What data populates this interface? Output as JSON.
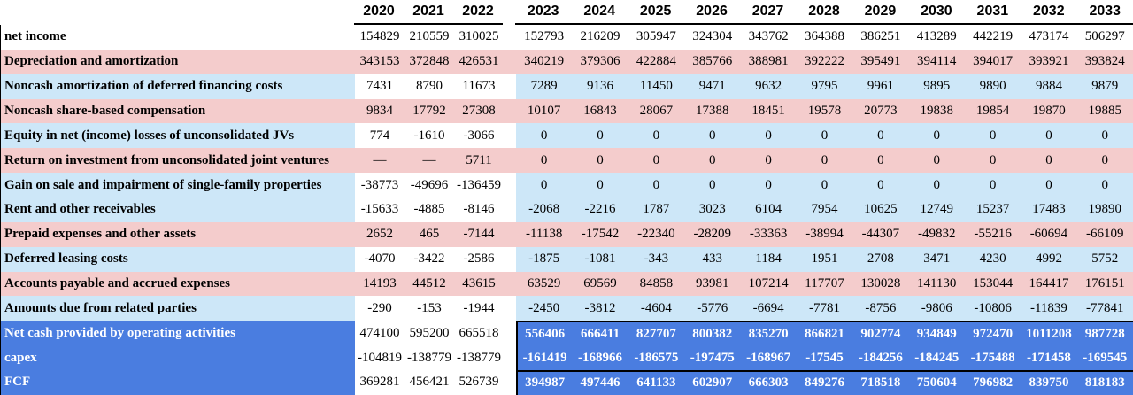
{
  "colors": {
    "row_pink": "#f4cccc",
    "row_light_blue": "#cde7f8",
    "total_blue": "#4a7de0",
    "rule_black": "#000000"
  },
  "table": {
    "years_historical": [
      "2020",
      "2021",
      "2022"
    ],
    "years_forecast": [
      "2023",
      "2024",
      "2025",
      "2026",
      "2027",
      "2028",
      "2029",
      "2030",
      "2031",
      "2032",
      "2033"
    ],
    "rows": [
      {
        "label": "net income",
        "type": "plain",
        "rule": false,
        "hist": [
          "154829",
          "210559",
          "310025"
        ],
        "forecast": [
          "152793",
          "216209",
          "305947",
          "324304",
          "343762",
          "364388",
          "386251",
          "413289",
          "442219",
          "473174",
          "506297"
        ]
      },
      {
        "label": "Depreciation and amortization",
        "type": "pink",
        "rule": false,
        "hist": [
          "343153",
          "372848",
          "426531"
        ],
        "forecast": [
          "340219",
          "379306",
          "422884",
          "385766",
          "388981",
          "392222",
          "395491",
          "394114",
          "394017",
          "393921",
          "393824"
        ]
      },
      {
        "label": "Noncash amortization of deferred financing costs",
        "type": "blue",
        "rule": false,
        "hist": [
          "7431",
          "8790",
          "11673"
        ],
        "forecast": [
          "7289",
          "9136",
          "11450",
          "9471",
          "9632",
          "9795",
          "9961",
          "9895",
          "9890",
          "9884",
          "9879"
        ]
      },
      {
        "label": "Noncash share-based compensation",
        "type": "pink",
        "rule": false,
        "hist": [
          "9834",
          "17792",
          "27308"
        ],
        "forecast": [
          "10107",
          "16843",
          "28067",
          "17388",
          "18451",
          "19578",
          "20773",
          "19838",
          "19854",
          "19870",
          "19885"
        ]
      },
      {
        "label": "Equity in net (income) losses of unconsolidated JVs",
        "type": "blue",
        "rule": false,
        "hist": [
          "774",
          "-1610",
          "-3066"
        ],
        "forecast": [
          "0",
          "0",
          "0",
          "0",
          "0",
          "0",
          "0",
          "0",
          "0",
          "0",
          "0"
        ]
      },
      {
        "label": "Return on investment from unconsolidated joint ventures",
        "type": "pink",
        "rule": false,
        "hist": [
          "—",
          "—",
          "5711"
        ],
        "forecast": [
          "0",
          "0",
          "0",
          "0",
          "0",
          "0",
          "0",
          "0",
          "0",
          "0",
          "0"
        ]
      },
      {
        "label": "Gain on sale and impairment of single-family properties",
        "type": "blue",
        "rule": false,
        "hist": [
          "-38773",
          "-49696",
          "-136459"
        ],
        "forecast": [
          "0",
          "0",
          "0",
          "0",
          "0",
          "0",
          "0",
          "0",
          "0",
          "0",
          "0"
        ]
      },
      {
        "label": "Rent and other receivables",
        "type": "blue",
        "rule": false,
        "hist": [
          "-15633",
          "-4885",
          "-8146"
        ],
        "forecast": [
          "-2068",
          "-2216",
          "1787",
          "3023",
          "6104",
          "7954",
          "10625",
          "12749",
          "15237",
          "17483",
          "19890"
        ]
      },
      {
        "label": "Prepaid expenses and other assets",
        "type": "pink",
        "rule": false,
        "hist": [
          "2652",
          "465",
          "-7144"
        ],
        "forecast": [
          "-11138",
          "-17542",
          "-22340",
          "-28209",
          "-33363",
          "-38994",
          "-44307",
          "-49832",
          "-55216",
          "-60694",
          "-66109"
        ]
      },
      {
        "label": "Deferred leasing costs",
        "type": "blue",
        "rule": false,
        "hist": [
          "-4070",
          "-3422",
          "-2586"
        ],
        "forecast": [
          "-1875",
          "-1081",
          "-343",
          "433",
          "1184",
          "1951",
          "2708",
          "3471",
          "4230",
          "4992",
          "5752"
        ]
      },
      {
        "label": "Accounts payable and accrued expenses",
        "type": "pink",
        "rule": false,
        "hist": [
          "14193",
          "44512",
          "43615"
        ],
        "forecast": [
          "63529",
          "69569",
          "84858",
          "93981",
          "107214",
          "117707",
          "130028",
          "141130",
          "153044",
          "164417",
          "176151"
        ]
      },
      {
        "label": "Amounts due from related parties",
        "type": "blue",
        "rule": false,
        "hist": [
          "-290",
          "-153",
          "-1944"
        ],
        "forecast": [
          "-2450",
          "-3812",
          "-4604",
          "-5776",
          "-6694",
          "-7781",
          "-8756",
          "-9806",
          "-10806",
          "-11839",
          "-77841"
        ]
      },
      {
        "label": "Net cash provided by operating activities",
        "type": "total",
        "rule": true,
        "hist": [
          "474100",
          "595200",
          "665518"
        ],
        "forecast": [
          "556406",
          "666411",
          "827707",
          "800382",
          "835270",
          "866821",
          "902774",
          "934849",
          "972470",
          "1011208",
          "987728"
        ]
      },
      {
        "label": "capex",
        "type": "total",
        "rule": false,
        "hist": [
          "-104819",
          "-138779",
          "-138779"
        ],
        "forecast": [
          "-161419",
          "-168966",
          "-186575",
          "-197475",
          "-168967",
          "-17545",
          "-184256",
          "-184245",
          "-175488",
          "-171458",
          "-169545"
        ]
      },
      {
        "label": "FCF",
        "type": "total",
        "rule": true,
        "hist": [
          "369281",
          "456421",
          "526739"
        ],
        "forecast": [
          "394987",
          "497446",
          "641133",
          "602907",
          "666303",
          "849276",
          "718518",
          "750604",
          "796982",
          "839750",
          "818183"
        ]
      }
    ]
  }
}
